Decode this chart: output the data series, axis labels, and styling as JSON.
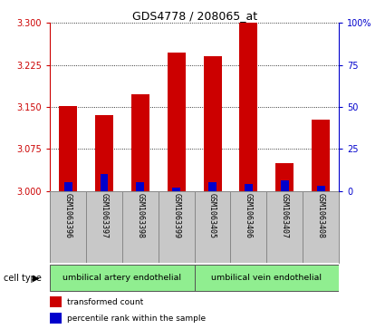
{
  "title": "GDS4778 / 208065_at",
  "samples": [
    "GSM1063396",
    "GSM1063397",
    "GSM1063398",
    "GSM1063399",
    "GSM1063405",
    "GSM1063406",
    "GSM1063407",
    "GSM1063408"
  ],
  "red_values": [
    3.152,
    3.135,
    3.172,
    3.247,
    3.24,
    3.3,
    3.05,
    3.128
  ],
  "blue_percentiles": [
    5,
    10,
    5,
    2,
    5,
    4,
    6,
    3
  ],
  "ylim_left": [
    3.0,
    3.3
  ],
  "ylim_right": [
    0,
    100
  ],
  "yticks_left": [
    3.0,
    3.075,
    3.15,
    3.225,
    3.3
  ],
  "yticks_right": [
    0,
    25,
    50,
    75,
    100
  ],
  "cell_type_groups": [
    {
      "label": "umbilical artery endothelial",
      "start": 0,
      "end": 3,
      "color": "#90EE90"
    },
    {
      "label": "umbilical vein endothelial",
      "start": 4,
      "end": 7,
      "color": "#90EE90"
    }
  ],
  "bar_width": 0.5,
  "red_color": "#CC0000",
  "blue_color": "#0000CC",
  "background_color": "#ffffff",
  "label_bg_color": "#C8C8C8",
  "label_border_color": "#888888",
  "tick_color_left": "#CC0000",
  "tick_color_right": "#0000CC",
  "legend_items": [
    {
      "label": "transformed count",
      "color": "#CC0000"
    },
    {
      "label": "percentile rank within the sample",
      "color": "#0000CC"
    }
  ],
  "cell_type_label": "cell type",
  "bar_base": 3.0
}
